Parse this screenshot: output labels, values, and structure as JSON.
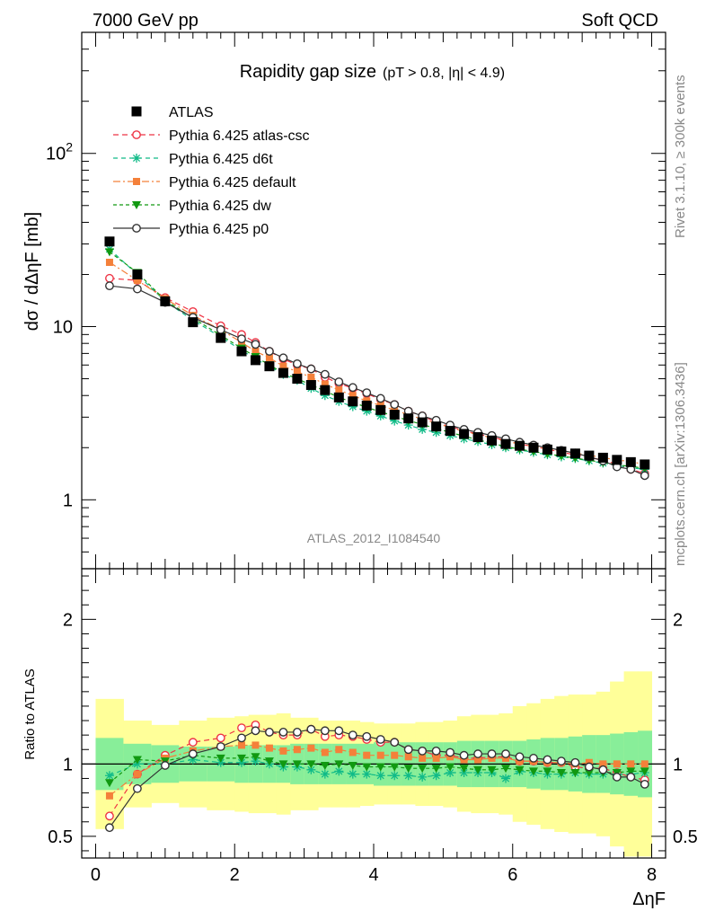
{
  "header": {
    "left": "7000 GeV pp",
    "right": "Soft QCD"
  },
  "side_labels": {
    "rivet": "Rivet 3.1.10, ≥ 300k events",
    "mcplots": "mcplots.cern.ch [arXiv:1306.3436]"
  },
  "colors": {
    "atlas": "#000000",
    "atlas_csc": "#ee3344",
    "d6t": "#11bb88",
    "default": "#f4803a",
    "dw": "#119911",
    "p0": "#333333",
    "band_yellow": "#ffff99",
    "band_green": "#88ee99"
  },
  "chart_data": [
    {
      "type": "scatter",
      "title": "Rapidity gap size",
      "subtitle": "(pT > 0.8, |η| < 4.9)",
      "watermark": "ATLAS_2012_I1084540",
      "ylabel": "dσ / dΔηF [mb]",
      "y_scale": "log",
      "ylim": [
        0.4,
        500
      ],
      "xlim": [
        -0.2,
        8.2
      ],
      "y_tick_labels": [
        "1",
        "10",
        "10^2"
      ],
      "legend_position": "top-left",
      "x": [
        0.2,
        0.6,
        1.0,
        1.4,
        1.8,
        2.1,
        2.3,
        2.5,
        2.7,
        2.9,
        3.1,
        3.3,
        3.5,
        3.7,
        3.9,
        4.1,
        4.3,
        4.5,
        4.7,
        4.9,
        5.1,
        5.3,
        5.5,
        5.7,
        5.9,
        6.1,
        6.3,
        6.5,
        6.7,
        6.9,
        7.1,
        7.3,
        7.5,
        7.7,
        7.9
      ],
      "series": [
        {
          "name": "ATLAS",
          "key": "atlas",
          "marker": "square",
          "values": [
            31,
            20,
            14,
            10.6,
            8.6,
            7.2,
            6.4,
            5.9,
            5.4,
            5.0,
            4.6,
            4.3,
            3.9,
            3.7,
            3.5,
            3.3,
            3.1,
            2.95,
            2.8,
            2.65,
            2.5,
            2.4,
            2.3,
            2.2,
            2.1,
            2.05,
            2.0,
            1.95,
            1.9,
            1.85,
            1.8,
            1.75,
            1.7,
            1.65,
            1.6
          ]
        },
        {
          "name": "Pythia 6.425 atlas-csc",
          "key": "atlas_csc",
          "marker": "circle-open",
          "dash": "6,4",
          "values": [
            19,
            18.5,
            14.7,
            12.2,
            10.1,
            9.0,
            8.1,
            7.2,
            6.5,
            6.0,
            5.7,
            5.1,
            4.7,
            4.4,
            4.1,
            3.8,
            3.55,
            3.25,
            3.05,
            2.8,
            2.65,
            2.5,
            2.4,
            2.3,
            2.2,
            2.1,
            2.03,
            1.96,
            1.88,
            1.82,
            1.75,
            1.7,
            1.6,
            1.5,
            1.42
          ]
        },
        {
          "name": "Pythia 6.425 d6t",
          "key": "d6t",
          "marker": "star",
          "dash": "5,4",
          "values": [
            28,
            20,
            14.0,
            10.9,
            8.7,
            7.3,
            6.5,
            5.9,
            5.3,
            4.9,
            4.4,
            4.0,
            3.7,
            3.45,
            3.25,
            3.05,
            2.85,
            2.7,
            2.55,
            2.45,
            2.35,
            2.25,
            2.17,
            2.08,
            2.0,
            1.94,
            1.88,
            1.82,
            1.77,
            1.73,
            1.68,
            1.63,
            1.58,
            1.53,
            1.5
          ]
        },
        {
          "name": "Pythia 6.425 default",
          "key": "default",
          "marker": "square-filled",
          "dash": "8,3,2,3",
          "values": [
            23.5,
            18.5,
            14.5,
            11.6,
            9.6,
            8.1,
            7.2,
            6.6,
            5.9,
            5.5,
            5.1,
            4.65,
            4.3,
            4.0,
            3.72,
            3.5,
            3.3,
            3.1,
            2.92,
            2.76,
            2.62,
            2.48,
            2.38,
            2.28,
            2.18,
            2.1,
            2.03,
            1.97,
            1.92,
            1.86,
            1.81,
            1.75,
            1.7,
            1.66,
            1.6
          ]
        },
        {
          "name": "Pythia 6.425 dw",
          "key": "dw",
          "marker": "triangle-down",
          "dash": "4,3",
          "values": [
            27,
            20.5,
            14.2,
            11.2,
            8.9,
            7.5,
            6.7,
            6.0,
            5.4,
            5.0,
            4.6,
            4.25,
            3.9,
            3.65,
            3.42,
            3.22,
            3.04,
            2.87,
            2.72,
            2.58,
            2.45,
            2.33,
            2.22,
            2.12,
            2.03,
            1.96,
            1.9,
            1.84,
            1.79,
            1.74,
            1.69,
            1.64,
            1.59,
            1.56,
            1.52
          ]
        },
        {
          "name": "Pythia 6.425 p0",
          "key": "p0",
          "marker": "circle-open",
          "dash": "",
          "values": [
            17.2,
            16.5,
            13.8,
            11.3,
            9.6,
            8.5,
            7.9,
            7.2,
            6.6,
            6.1,
            5.7,
            5.3,
            4.8,
            4.45,
            4.15,
            3.85,
            3.55,
            3.25,
            3.05,
            2.88,
            2.7,
            2.55,
            2.45,
            2.35,
            2.25,
            2.15,
            2.07,
            2.0,
            1.93,
            1.86,
            1.77,
            1.68,
            1.55,
            1.5,
            1.38
          ]
        }
      ]
    },
    {
      "type": "line",
      "ylabel": "Ratio to ATLAS",
      "xlabel": "ΔηF",
      "ylim": [
        0.35,
        2.35
      ],
      "xlim": [
        -0.2,
        8.2
      ],
      "x_tick_labels": [
        "0",
        "2",
        "4",
        "6",
        "8"
      ],
      "y_tick_labels": [
        "0.5",
        "1",
        "2"
      ],
      "reference_line": 1,
      "bands": {
        "bin_edges": [
          0.0,
          0.4,
          0.8,
          1.2,
          1.6,
          2.0,
          2.2,
          2.4,
          2.6,
          2.8,
          3.0,
          3.2,
          3.4,
          3.6,
          3.8,
          4.0,
          4.2,
          4.4,
          4.6,
          4.8,
          5.0,
          5.2,
          5.4,
          5.6,
          5.8,
          6.0,
          6.2,
          6.4,
          6.6,
          6.8,
          7.0,
          7.2,
          7.4,
          7.6,
          7.8,
          8.0
        ],
        "green_lo": [
          0.82,
          0.86,
          0.87,
          0.88,
          0.88,
          0.87,
          0.87,
          0.87,
          0.87,
          0.86,
          0.86,
          0.86,
          0.86,
          0.86,
          0.86,
          0.85,
          0.85,
          0.85,
          0.85,
          0.85,
          0.85,
          0.84,
          0.84,
          0.84,
          0.84,
          0.84,
          0.83,
          0.82,
          0.82,
          0.81,
          0.8,
          0.8,
          0.79,
          0.78,
          0.77
        ],
        "green_hi": [
          1.18,
          1.14,
          1.13,
          1.12,
          1.12,
          1.13,
          1.13,
          1.13,
          1.13,
          1.14,
          1.14,
          1.14,
          1.14,
          1.14,
          1.14,
          1.15,
          1.15,
          1.15,
          1.15,
          1.15,
          1.15,
          1.16,
          1.16,
          1.16,
          1.16,
          1.16,
          1.17,
          1.18,
          1.18,
          1.19,
          1.2,
          1.2,
          1.21,
          1.22,
          1.23
        ],
        "yellow_lo": [
          0.55,
          0.7,
          0.73,
          0.7,
          0.68,
          0.67,
          0.66,
          0.66,
          0.65,
          0.68,
          0.68,
          0.7,
          0.7,
          0.7,
          0.71,
          0.72,
          0.72,
          0.72,
          0.71,
          0.71,
          0.7,
          0.67,
          0.66,
          0.66,
          0.65,
          0.6,
          0.58,
          0.55,
          0.53,
          0.52,
          0.52,
          0.5,
          0.43,
          0.36,
          0.36
        ],
        "yellow_hi": [
          1.45,
          1.3,
          1.27,
          1.3,
          1.32,
          1.33,
          1.34,
          1.34,
          1.35,
          1.32,
          1.32,
          1.3,
          1.3,
          1.3,
          1.29,
          1.28,
          1.28,
          1.28,
          1.29,
          1.29,
          1.3,
          1.33,
          1.34,
          1.34,
          1.35,
          1.4,
          1.42,
          1.45,
          1.47,
          1.48,
          1.48,
          1.5,
          1.57,
          1.64,
          1.64
        ]
      },
      "x": [
        0.2,
        0.6,
        1.0,
        1.4,
        1.8,
        2.1,
        2.3,
        2.5,
        2.7,
        2.9,
        3.1,
        3.3,
        3.5,
        3.7,
        3.9,
        4.1,
        4.3,
        4.5,
        4.7,
        4.9,
        5.1,
        5.3,
        5.5,
        5.7,
        5.9,
        6.1,
        6.3,
        6.5,
        6.7,
        6.9,
        7.1,
        7.3,
        7.5,
        7.7,
        7.9
      ],
      "series": [
        {
          "name": "Pythia 6.425 atlas-csc",
          "key": "atlas_csc",
          "marker": "circle-open",
          "dash": "6,4",
          "values": [
            0.64,
            0.93,
            1.06,
            1.15,
            1.18,
            1.25,
            1.27,
            1.22,
            1.2,
            1.2,
            1.24,
            1.19,
            1.2,
            1.19,
            1.17,
            1.15,
            1.15,
            1.1,
            1.09,
            1.06,
            1.06,
            1.04,
            1.04,
            1.05,
            1.05,
            1.02,
            1.02,
            1.01,
            1.01,
            0.98,
            0.97,
            0.97,
            0.94,
            0.91,
            0.89
          ]
        },
        {
          "name": "Pythia 6.425 d6t",
          "key": "d6t",
          "marker": "star",
          "dash": "5,4",
          "values": [
            0.92,
            1.0,
            1.0,
            1.03,
            1.01,
            1.01,
            1.02,
            1.0,
            0.98,
            0.98,
            0.96,
            0.93,
            0.95,
            0.93,
            0.93,
            0.92,
            0.92,
            0.92,
            0.91,
            0.92,
            0.94,
            0.94,
            0.94,
            0.94,
            0.9,
            0.95,
            0.94,
            0.93,
            0.93,
            0.94,
            0.93,
            0.93,
            0.93,
            0.93,
            0.94
          ]
        },
        {
          "name": "Pythia 6.425 default",
          "key": "default",
          "marker": "square-filled",
          "dash": "8,3,2,3",
          "values": [
            0.78,
            0.93,
            1.04,
            1.09,
            1.12,
            1.13,
            1.13,
            1.11,
            1.09,
            1.1,
            1.11,
            1.08,
            1.1,
            1.08,
            1.06,
            1.06,
            1.06,
            1.05,
            1.04,
            1.04,
            1.05,
            1.03,
            1.03,
            1.04,
            1.04,
            1.02,
            1.02,
            1.01,
            1.01,
            1.0,
            1.01,
            1.0,
            1.0,
            1.0,
            1.0
          ]
        },
        {
          "name": "Pythia 6.425 dw",
          "key": "dw",
          "marker": "triangle-down",
          "dash": "4,3",
          "values": [
            0.87,
            1.03,
            1.02,
            1.06,
            1.04,
            1.04,
            1.05,
            1.02,
            1.0,
            1.0,
            1.0,
            0.99,
            1.0,
            0.99,
            0.98,
            0.98,
            0.98,
            0.97,
            0.97,
            0.97,
            0.98,
            0.97,
            0.96,
            0.96,
            0.97,
            0.96,
            0.95,
            0.95,
            0.94,
            0.94,
            0.94,
            0.94,
            0.94,
            0.95,
            0.95
          ]
        },
        {
          "name": "Pythia 6.425 p0",
          "key": "p0",
          "marker": "circle-open",
          "dash": "",
          "values": [
            0.56,
            0.83,
            0.99,
            1.07,
            1.12,
            1.18,
            1.23,
            1.22,
            1.22,
            1.22,
            1.24,
            1.23,
            1.23,
            1.2,
            1.19,
            1.17,
            1.15,
            1.1,
            1.09,
            1.09,
            1.08,
            1.06,
            1.07,
            1.07,
            1.07,
            1.05,
            1.04,
            1.03,
            1.02,
            1.01,
            0.98,
            0.96,
            0.91,
            0.91,
            0.86
          ]
        }
      ]
    }
  ]
}
